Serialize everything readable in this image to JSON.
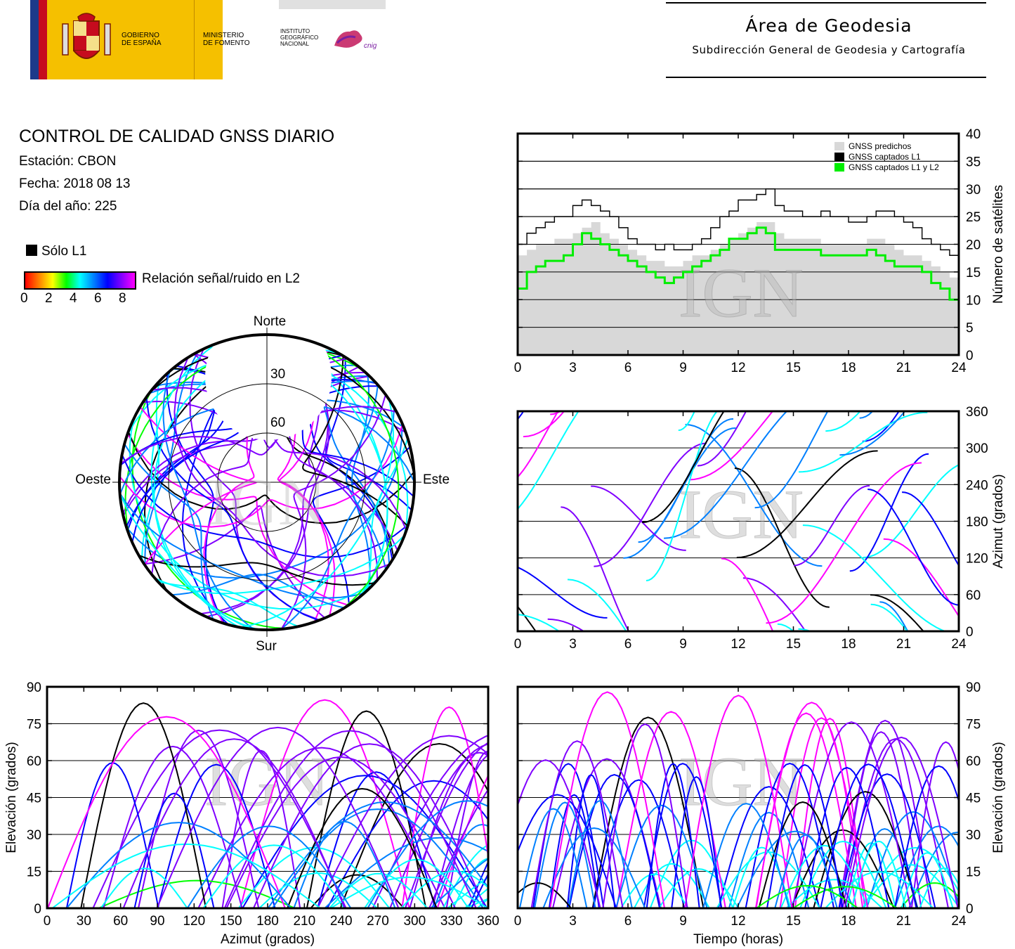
{
  "header": {
    "logos": {
      "gobierno": [
        "GOBIERNO",
        "DE ESPAÑA"
      ],
      "ministerio": [
        "MINISTERIO",
        "DE FOMENTO"
      ],
      "instituto": [
        "INSTITUTO",
        "GEOGRÁFICO",
        "NACIONAL"
      ],
      "cnig": "cnig"
    },
    "title": "Área de Geodesia",
    "subtitle": "Subdirección General de Geodesia y Cartografía"
  },
  "info": {
    "title": "CONTROL DE CALIDAD GNSS DIARIO",
    "station": "Estación: CBON",
    "date": "Fecha: 2018 08 13",
    "doy": "Día del año: 225"
  },
  "legend": {
    "l1_only": "Sólo L1",
    "snr_label": "Relación señal/ruido en L2",
    "ticks": [
      "0",
      "2",
      "4",
      "6",
      "8"
    ],
    "colors": [
      "#ff0000",
      "#ff8000",
      "#ffff00",
      "#00ff00",
      "#00ffff",
      "#0000ff",
      "#ff00ff"
    ]
  },
  "watermark": "IGN",
  "colors": {
    "predicted": "#d8d8d8",
    "l1": "#000000",
    "l1l2": "#00ee00"
  },
  "chart_data": [
    {
      "type": "area",
      "ylabel": "Número de satélites",
      "xlim": [
        0,
        24
      ],
      "ylim": [
        0,
        40
      ],
      "xticks": [
        "0",
        "3",
        "6",
        "9",
        "12",
        "15",
        "18",
        "21",
        "24"
      ],
      "yticks": [
        "0",
        "5",
        "10",
        "15",
        "20",
        "25",
        "30",
        "35",
        "40"
      ],
      "legend": [
        "GNSS predichos",
        "GNSS captados L1",
        "GNSS captados L1 y L2"
      ],
      "legend_position": "top-right",
      "x": [
        0,
        0.5,
        1,
        1.5,
        2,
        2.5,
        3,
        3.5,
        4,
        4.5,
        5,
        5.5,
        6,
        6.5,
        7,
        7.5,
        8,
        8.5,
        9,
        9.5,
        10,
        10.5,
        11,
        11.5,
        12,
        12.5,
        13,
        13.5,
        14,
        14.5,
        15,
        15.5,
        16,
        16.5,
        17,
        17.5,
        18,
        18.5,
        19,
        19.5,
        20,
        20.5,
        21,
        21.5,
        22,
        22.5,
        23,
        23.5,
        24
      ],
      "series": [
        {
          "name": "GNSS predichos",
          "values": [
            18,
            19,
            20,
            20,
            21,
            21,
            22,
            23,
            24,
            22,
            21,
            20,
            19,
            18,
            17,
            17,
            16,
            16,
            17,
            18,
            18,
            19,
            20,
            21,
            22,
            23,
            24,
            24,
            22,
            21,
            21,
            21,
            21,
            20,
            20,
            20,
            20,
            20,
            21,
            21,
            20,
            19,
            18,
            18,
            17,
            16,
            15,
            14,
            15
          ]
        },
        {
          "name": "GNSS captados L1",
          "values": [
            20,
            22,
            23,
            24,
            25,
            25,
            27,
            28,
            27,
            26,
            25,
            23,
            21,
            20,
            20,
            19,
            20,
            19,
            19,
            20,
            21,
            23,
            25,
            26,
            28,
            28,
            29,
            30,
            27,
            26,
            26,
            25,
            25,
            26,
            25,
            25,
            24,
            24,
            25,
            26,
            26,
            25,
            24,
            23,
            21,
            20,
            19,
            18,
            19
          ]
        },
        {
          "name": "GNSS captados L1 y L2",
          "values": [
            12,
            15,
            16,
            17,
            17,
            18,
            20,
            22,
            21,
            20,
            19,
            18,
            17,
            16,
            15,
            14,
            13,
            14,
            15,
            16,
            17,
            18,
            19,
            21,
            21,
            22,
            23,
            22,
            19,
            19,
            19,
            19,
            19,
            18,
            18,
            18,
            18,
            18,
            19,
            18,
            17,
            16,
            16,
            16,
            15,
            13,
            12,
            10,
            12
          ]
        }
      ]
    },
    {
      "type": "scatter",
      "subtype": "skyplot",
      "directions": {
        "north": "Norte",
        "south": "Sur",
        "west": "Oeste",
        "east": "Este"
      },
      "rings": [
        "30",
        "60"
      ]
    },
    {
      "type": "scatter",
      "ylabel": "Azimut (grados)",
      "xlim": [
        0,
        24
      ],
      "ylim": [
        0,
        360
      ],
      "xticks": [
        "0",
        "3",
        "6",
        "9",
        "12",
        "15",
        "18",
        "21",
        "24"
      ],
      "yticks": [
        "0",
        "60",
        "120",
        "180",
        "240",
        "300",
        "360"
      ]
    },
    {
      "type": "scatter",
      "xlabel": "Azimut (grados)",
      "ylabel": "Elevación (grados)",
      "xlim": [
        0,
        360
      ],
      "ylim": [
        0,
        90
      ],
      "xticks": [
        "0",
        "30",
        "60",
        "90",
        "120",
        "150",
        "180",
        "210",
        "240",
        "270",
        "300",
        "330",
        "360"
      ],
      "yticks": [
        "0",
        "15",
        "30",
        "45",
        "60",
        "75",
        "90"
      ]
    },
    {
      "type": "scatter",
      "xlabel": "Tiempo (horas)",
      "ylabel": "Elevación (grados)",
      "xlim": [
        0,
        24
      ],
      "ylim": [
        0,
        90
      ],
      "xticks": [
        "0",
        "3",
        "6",
        "9",
        "12",
        "15",
        "18",
        "21",
        "24"
      ],
      "yticks": [
        "0",
        "15",
        "30",
        "45",
        "60",
        "75",
        "90"
      ]
    }
  ]
}
